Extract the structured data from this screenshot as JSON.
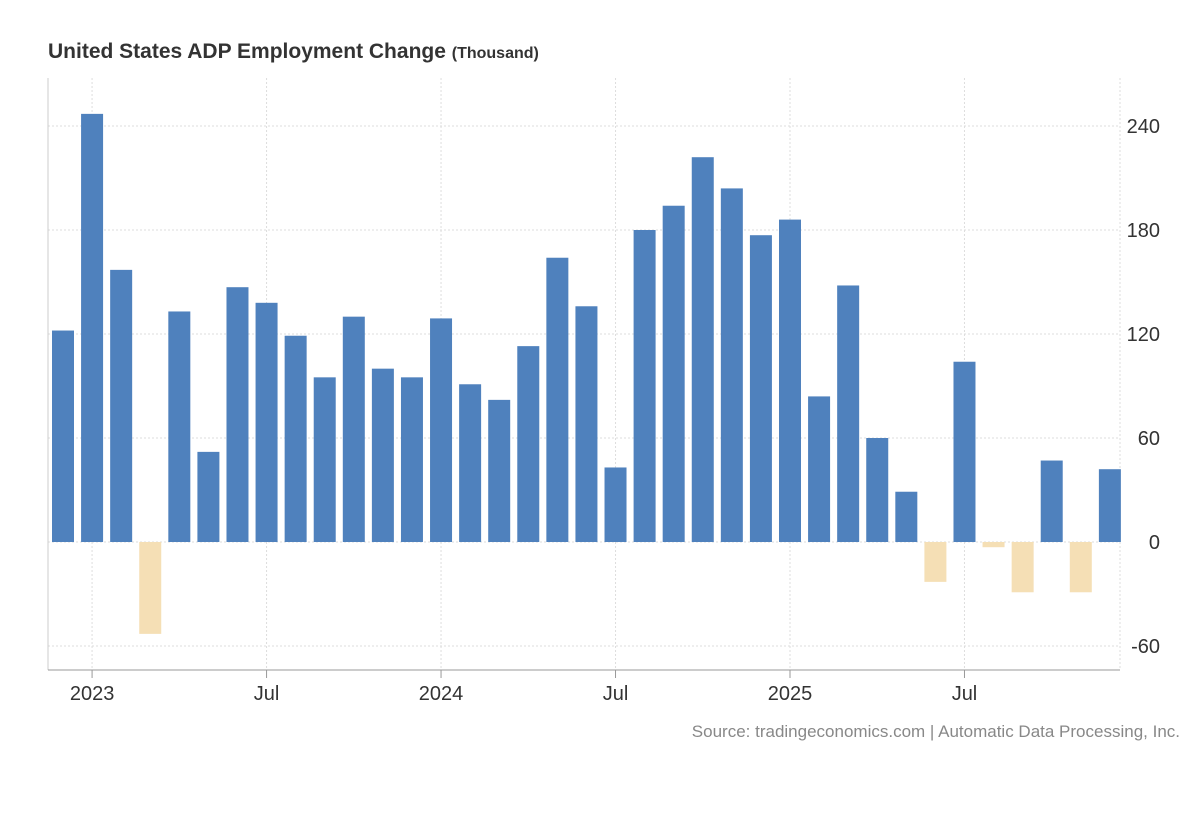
{
  "chart_data": {
    "type": "bar",
    "title": "United States ADP Employment Change",
    "unit": "(Thousand)",
    "source": "Source: tradingeconomics.com | Automatic Data Processing, Inc.",
    "categories": [
      "Dec 2022",
      "Jan 2023",
      "Feb 2023",
      "Mar 2023",
      "Apr 2023",
      "May 2023",
      "Jun 2023",
      "Jul 2023",
      "Aug 2023",
      "Sep 2023",
      "Oct 2023",
      "Nov 2023",
      "Dec 2023",
      "Jan 2024",
      "Feb 2024",
      "Mar 2024",
      "Apr 2024",
      "May 2024",
      "Jun 2024",
      "Jul 2024",
      "Aug 2024",
      "Sep 2024",
      "Oct 2024",
      "Nov 2024",
      "Dec 2024",
      "Jan 2025",
      "Feb 2025",
      "Mar 2025",
      "Apr 2025",
      "May 2025",
      "Jun 2025",
      "Jul 2025",
      "Aug 2025",
      "Sep 2025",
      "Oct 2025",
      "Nov 2025",
      "Dec 2025"
    ],
    "values": [
      122,
      247,
      157,
      -53,
      133,
      52,
      147,
      138,
      119,
      95,
      130,
      100,
      95,
      129,
      91,
      82,
      113,
      164,
      136,
      43,
      180,
      194,
      222,
      204,
      177,
      186,
      84,
      148,
      60,
      29,
      -23,
      104,
      -3,
      -29,
      47,
      -29,
      42
    ],
    "xticks": [
      {
        "label": "2023",
        "index": 1
      },
      {
        "label": "Jul",
        "index": 7
      },
      {
        "label": "2024",
        "index": 13
      },
      {
        "label": "Jul",
        "index": 19
      },
      {
        "label": "2025",
        "index": 25
      },
      {
        "label": "Jul",
        "index": 31
      }
    ],
    "yticks": [
      240,
      180,
      120,
      60,
      0,
      -60
    ],
    "ylim": [
      -74,
      268
    ],
    "grid": true,
    "colors": {
      "positive": "#4f81bd",
      "negative": "#f5dfb5"
    }
  }
}
